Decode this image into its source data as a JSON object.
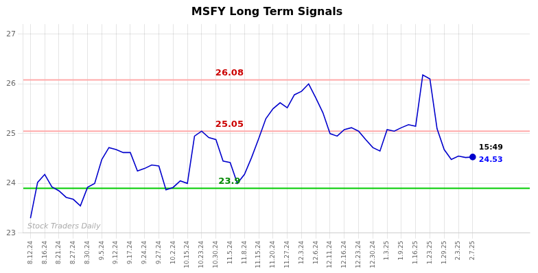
{
  "chart_data": {
    "type": "line",
    "title": "MSFY Long Term Signals",
    "categories": [
      "8.12.24",
      null,
      "8.16.24",
      null,
      "8.21.24",
      null,
      "8.27.24",
      null,
      "8.30.24",
      null,
      "9.5.24",
      null,
      "9.12.24",
      null,
      "9.17.24",
      null,
      "9.24.24",
      null,
      "9.27.24",
      null,
      "10.2.24",
      null,
      "10.15.24",
      null,
      "10.23.24",
      null,
      "10.30.24",
      null,
      "11.5.24",
      null,
      "11.8.24",
      null,
      "11.15.24",
      null,
      "11.20.24",
      null,
      "11.27.24",
      null,
      "12.3.24",
      null,
      "12.6.24",
      null,
      "12.11.24",
      null,
      "12.16.24",
      null,
      "12.23.24",
      null,
      "12.30.24",
      null,
      "1.3.25",
      null,
      "1.9.25",
      null,
      "1.16.25",
      null,
      "1.23.25",
      null,
      "1.29.25",
      null,
      "2.3.25",
      null,
      "2.7.25"
    ],
    "values": [
      23.3,
      24.02,
      24.18,
      23.93,
      23.85,
      23.72,
      23.68,
      23.55,
      23.92,
      24.0,
      24.48,
      24.72,
      24.68,
      24.62,
      24.62,
      24.25,
      24.3,
      24.37,
      24.35,
      23.87,
      23.92,
      24.05,
      24.0,
      24.95,
      25.05,
      24.92,
      24.88,
      24.45,
      24.42,
      24.0,
      24.18,
      24.52,
      24.9,
      25.3,
      25.5,
      25.62,
      25.52,
      25.78,
      25.85,
      26.0,
      25.72,
      25.42,
      25.0,
      24.95,
      25.08,
      25.12,
      25.05,
      24.88,
      24.72,
      24.65,
      25.08,
      25.05,
      25.12,
      25.18,
      25.15,
      26.18,
      26.1,
      25.1,
      24.68,
      24.48,
      24.55,
      24.52,
      24.53
    ],
    "color": "#0000cc",
    "ylim": [
      23.0,
      27.2
    ],
    "yticks": [
      23,
      24,
      25,
      26,
      27
    ],
    "grid": true,
    "annotations": [
      {
        "type": "hline",
        "y": 26.08,
        "text": "26.08",
        "line_color": "#ffaaaa",
        "color": "#cc0000"
      },
      {
        "type": "hline",
        "y": 25.05,
        "text": "25.05",
        "line_color": "#ffaaaa",
        "color": "#cc0000"
      },
      {
        "type": "hline",
        "y": 23.9,
        "text": "23.9",
        "line_color": "#00cc00",
        "color": "#008800"
      },
      {
        "type": "end_label",
        "text": "15:49",
        "color": "#000000"
      },
      {
        "type": "end_label",
        "text": "24.53",
        "value": 24.53,
        "color": "#0000ff"
      },
      {
        "type": "watermark",
        "text": "Stock Traders Daily",
        "color": "#aaaaaa"
      }
    ]
  }
}
